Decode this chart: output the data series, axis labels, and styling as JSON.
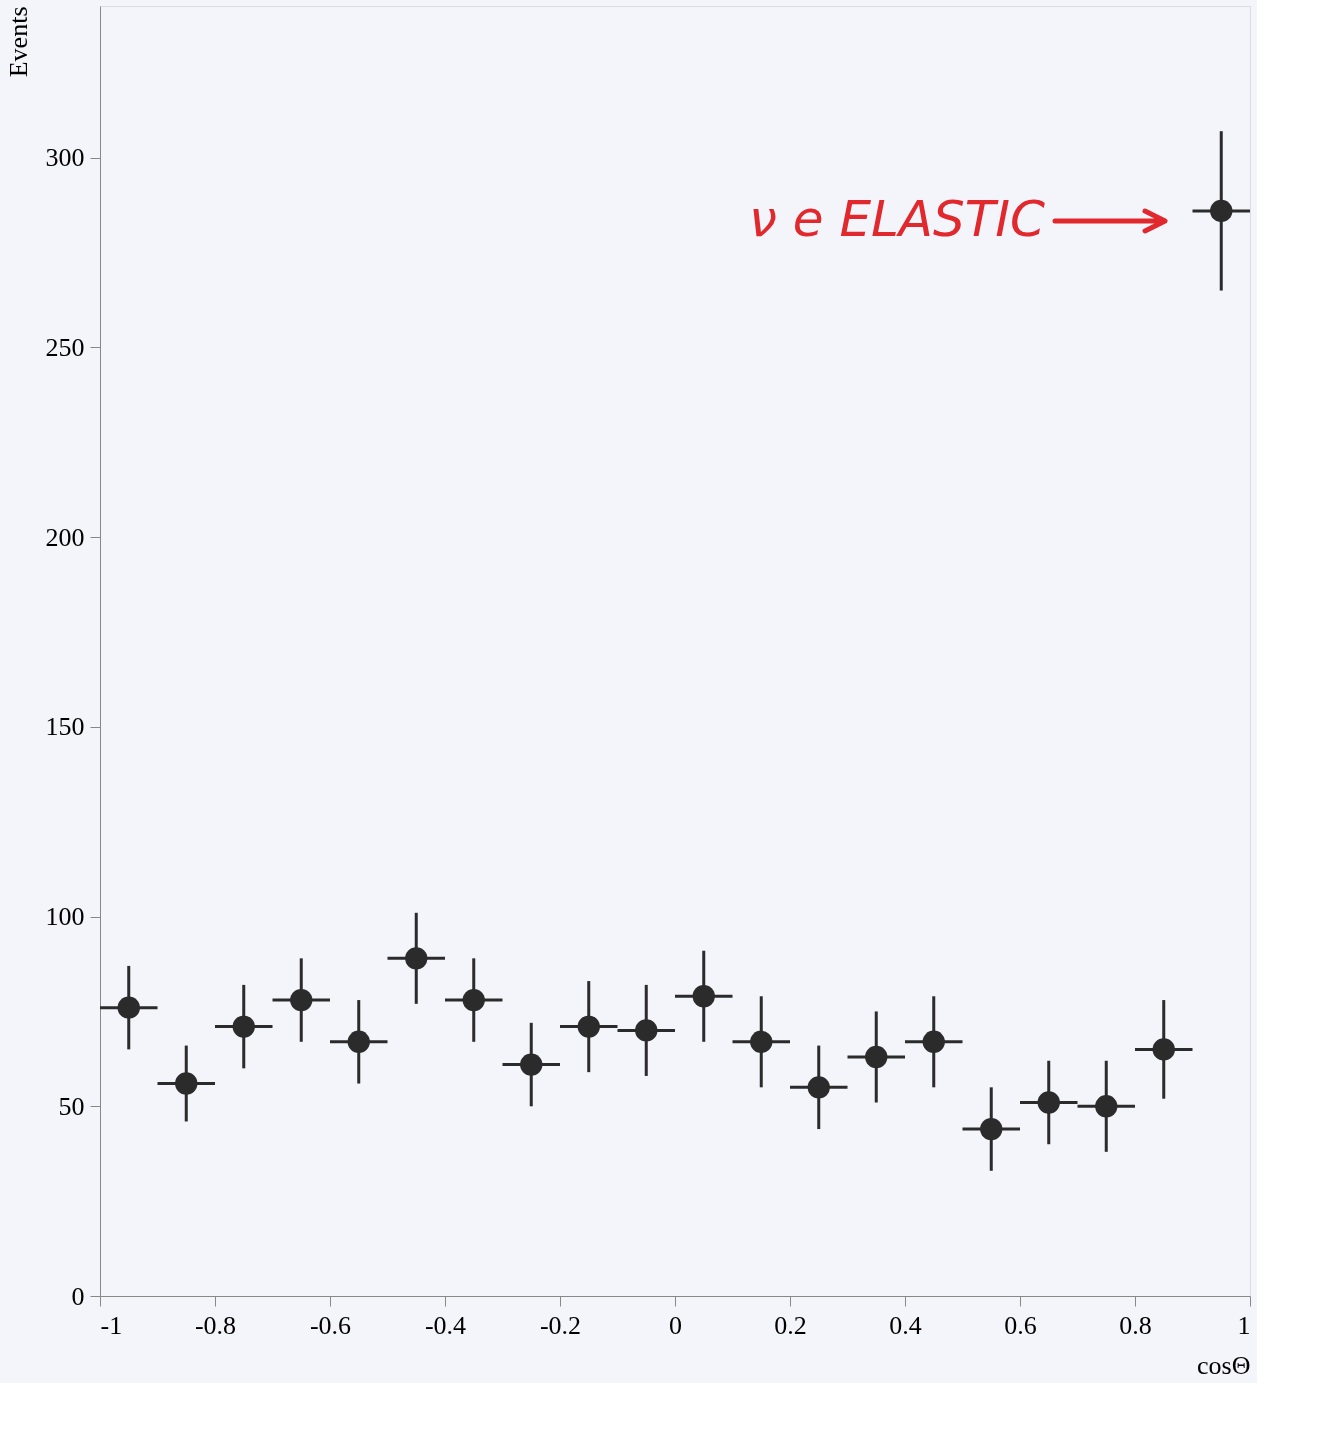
{
  "chart_data": {
    "type": "scatter",
    "xlabel": "cosΘ",
    "ylabel": "Events",
    "x": [
      -0.95,
      -0.85,
      -0.75,
      -0.65,
      -0.55,
      -0.45,
      -0.35,
      -0.25,
      -0.15,
      -0.05,
      0.05,
      0.15,
      0.25,
      0.35,
      0.45,
      0.55,
      0.65,
      0.75,
      0.85,
      0.95
    ],
    "series": [
      {
        "color": "#2b2b2b",
        "values": [
          76,
          56,
          71,
          78,
          67,
          89,
          78,
          61,
          71,
          70,
          79,
          67,
          55,
          63,
          67,
          44,
          51,
          50,
          65,
          286
        ],
        "errors": [
          11,
          10,
          11,
          11,
          11,
          12,
          11,
          11,
          12,
          12,
          12,
          12,
          11,
          12,
          12,
          11,
          11,
          12,
          13,
          21
        ],
        "xerrors": [
          0.05,
          0.05,
          0.05,
          0.05,
          0.05,
          0.05,
          0.05,
          0.05,
          0.05,
          0.05,
          0.05,
          0.05,
          0.05,
          0.05,
          0.05,
          0.05,
          0.05,
          0.05,
          0.05,
          0.05
        ]
      }
    ],
    "marker": "circle",
    "grid": false,
    "xlim": [
      -1,
      1
    ],
    "ylim": [
      0,
      340
    ],
    "xticks": [
      -1,
      -0.8,
      -0.6,
      -0.4,
      -0.2,
      0,
      0.2,
      0.4,
      0.6,
      0.8,
      1
    ],
    "yticks": [
      0,
      50,
      100,
      150,
      200,
      250,
      300
    ],
    "annotations": [
      "ν e ELASTIC"
    ]
  }
}
